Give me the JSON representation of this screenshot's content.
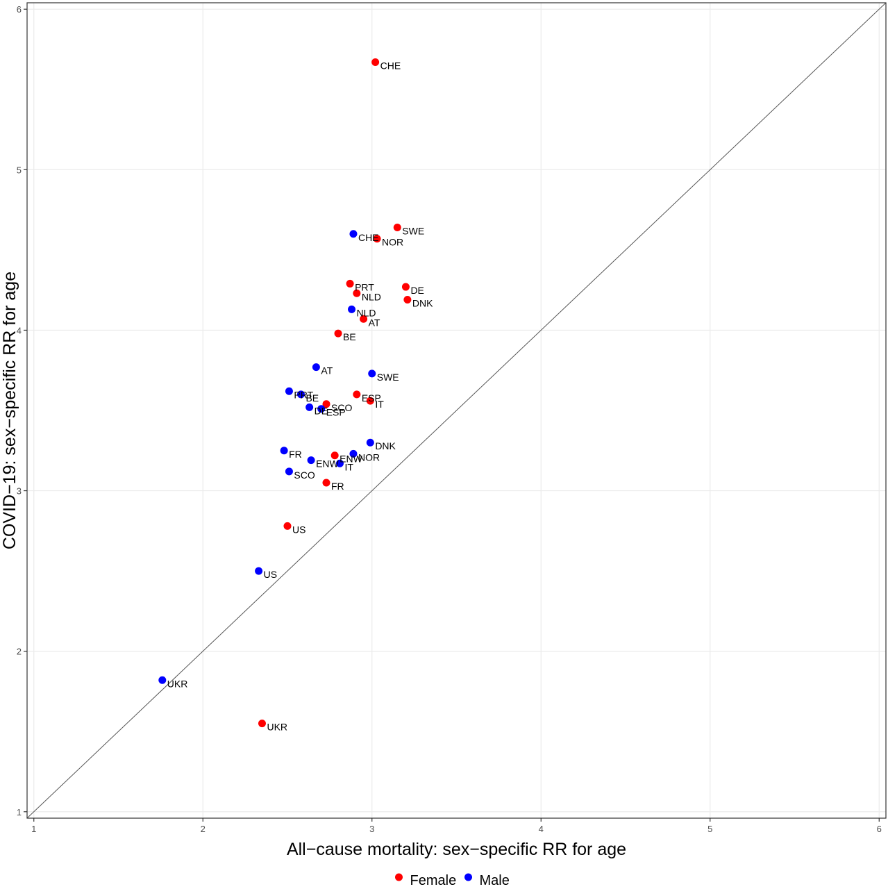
{
  "chart_data": {
    "type": "scatter",
    "xlabel": "All−cause mortality: sex−specific RR for age",
    "ylabel": "COVID−19: sex−specific RR for age",
    "xlim": [
      0.96,
      6.04
    ],
    "ylim": [
      0.96,
      6.04
    ],
    "x_ticks": [
      "1",
      "2",
      "3",
      "4",
      "5",
      "6"
    ],
    "y_ticks": [
      "1",
      "2",
      "3",
      "4",
      "5",
      "6"
    ],
    "grid": true,
    "reference_line": "y = x",
    "legend_position": "bottom",
    "series": [
      {
        "name": "Female",
        "color": "#ff0000",
        "points": [
          {
            "label": "CHE",
            "x": 3.02,
            "y": 5.67
          },
          {
            "label": "SWE",
            "x": 3.15,
            "y": 4.64
          },
          {
            "label": "NOR",
            "x": 3.03,
            "y": 4.57
          },
          {
            "label": "PRT",
            "x": 2.87,
            "y": 4.29
          },
          {
            "label": "DE",
            "x": 3.2,
            "y": 4.27
          },
          {
            "label": "NLD",
            "x": 2.91,
            "y": 4.23
          },
          {
            "label": "DNK",
            "x": 3.21,
            "y": 4.19
          },
          {
            "label": "AT",
            "x": 2.95,
            "y": 4.07
          },
          {
            "label": "BE",
            "x": 2.8,
            "y": 3.98
          },
          {
            "label": "ESP",
            "x": 2.91,
            "y": 3.6
          },
          {
            "label": "IT",
            "x": 2.99,
            "y": 3.56
          },
          {
            "label": "SCO",
            "x": 2.73,
            "y": 3.54
          },
          {
            "label": "ENW",
            "x": 2.78,
            "y": 3.22
          },
          {
            "label": "FR",
            "x": 2.73,
            "y": 3.05
          },
          {
            "label": "US",
            "x": 2.5,
            "y": 2.78
          },
          {
            "label": "UKR",
            "x": 2.35,
            "y": 1.55
          }
        ]
      },
      {
        "name": "Male",
        "color": "#0000ff",
        "points": [
          {
            "label": "CHE",
            "x": 2.89,
            "y": 4.6
          },
          {
            "label": "NLD",
            "x": 2.88,
            "y": 4.13
          },
          {
            "label": "AT",
            "x": 2.67,
            "y": 3.77
          },
          {
            "label": "SWE",
            "x": 3.0,
            "y": 3.73
          },
          {
            "label": "PRT",
            "x": 2.51,
            "y": 3.62
          },
          {
            "label": "BE",
            "x": 2.58,
            "y": 3.6
          },
          {
            "label": "DE",
            "x": 2.63,
            "y": 3.52
          },
          {
            "label": "ESP",
            "x": 2.7,
            "y": 3.51
          },
          {
            "label": "DNK",
            "x": 2.99,
            "y": 3.3
          },
          {
            "label": "NOR",
            "x": 2.89,
            "y": 3.23
          },
          {
            "label": "FR",
            "x": 2.48,
            "y": 3.25
          },
          {
            "label": "ENW",
            "x": 2.64,
            "y": 3.19
          },
          {
            "label": "IT",
            "x": 2.81,
            "y": 3.17
          },
          {
            "label": "SCO",
            "x": 2.51,
            "y": 3.12
          },
          {
            "label": "US",
            "x": 2.33,
            "y": 2.5
          },
          {
            "label": "UKR",
            "x": 1.76,
            "y": 1.82
          }
        ]
      }
    ]
  }
}
